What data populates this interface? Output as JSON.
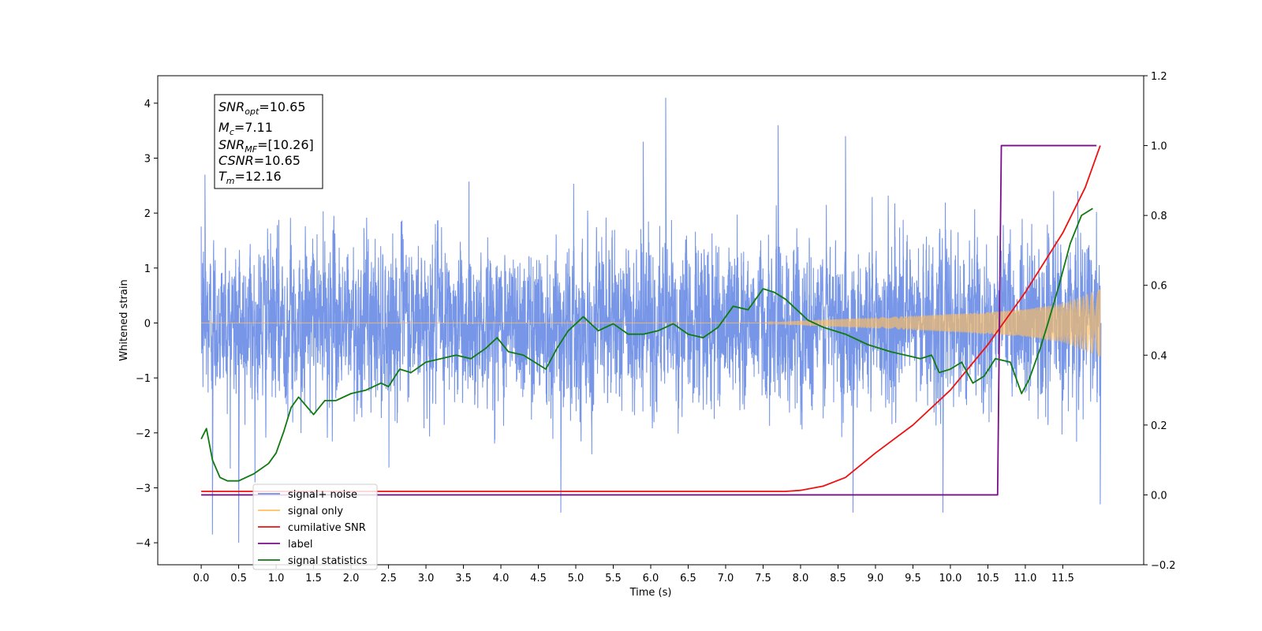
{
  "chart_data": {
    "type": "line",
    "xlabel": "Time (s)",
    "ylabel": "Whitened strain",
    "xlim": [
      -0.58,
      12.58
    ],
    "ylim": [
      -4.4,
      4.5
    ],
    "y2lim": [
      -0.2,
      1.2
    ],
    "x_ticks": [
      "0.0",
      "0.5",
      "1.0",
      "1.5",
      "2.0",
      "2.5",
      "3.0",
      "3.5",
      "4.0",
      "4.5",
      "5.0",
      "5.5",
      "6.0",
      "6.5",
      "7.0",
      "7.5",
      "8.0",
      "8.5",
      "9.0",
      "9.5",
      "10.0",
      "10.5",
      "11.0",
      "11.5"
    ],
    "y_ticks": [
      "4",
      "3",
      "2",
      "1",
      "0",
      "−1",
      "−2",
      "−3",
      "−4"
    ],
    "y2_ticks": [
      "1.2",
      "1.0",
      "0.8",
      "0.6",
      "0.4",
      "0.2",
      "0.0",
      "−0.2"
    ],
    "annotation": {
      "lines": [
        {
          "base": "SNR",
          "sub": "opt",
          "value": "=10.65"
        },
        {
          "base": "M",
          "sub": "c",
          "value": "=7.11"
        },
        {
          "base": "SNR",
          "sub": "MF",
          "value": "=[10.26]"
        },
        {
          "base": "CSNR",
          "sub": "",
          "value": "=10.65"
        },
        {
          "base": "T",
          "sub": "m",
          "value": "=12.16"
        }
      ]
    },
    "legend": {
      "placement": "lower-left",
      "entries": [
        {
          "label": "signal+ noise",
          "color": "#7090e6"
        },
        {
          "label": "signal only",
          "color": "#ffbf60"
        },
        {
          "label": "cumilative SNR",
          "color": "#ee1111"
        },
        {
          "label": "label",
          "color": "#7a0f8a"
        },
        {
          "label": "signal statistics",
          "color": "#107a10"
        }
      ]
    },
    "series": [
      {
        "name": "signal+ noise",
        "axis": "left",
        "description": "whitened noise plus signal, approx. zero mean, unit variance",
        "x_range": [
          0,
          12
        ],
        "envelope_upper_approx": [
          2.5,
          2.6,
          2.5,
          2.4,
          2.5,
          2.6,
          2.5,
          2.5,
          2.4,
          2.6,
          2.5,
          2.5,
          2.4
        ],
        "notable_peaks": [
          [
            0.05,
            2.7
          ],
          [
            6.2,
            4.1
          ],
          [
            7.7,
            3.6
          ],
          [
            5.9,
            3.3
          ],
          [
            8.6,
            3.4
          ],
          [
            11.7,
            2.4
          ]
        ],
        "notable_troughs": [
          [
            0.5,
            -4.0
          ],
          [
            0.15,
            -3.85
          ],
          [
            4.8,
            -3.45
          ],
          [
            8.7,
            -3.45
          ],
          [
            9.9,
            -3.45
          ],
          [
            12.0,
            -3.3
          ]
        ]
      },
      {
        "name": "signal only",
        "axis": "left",
        "x": [
          0.0,
          7.5,
          8.0,
          8.5,
          9.0,
          9.5,
          10.0,
          10.5,
          11.0,
          11.5,
          12.0
        ],
        "amplitude": [
          0.0,
          0.0,
          0.04,
          0.07,
          0.1,
          0.13,
          0.16,
          0.2,
          0.25,
          0.35,
          0.62
        ]
      },
      {
        "name": "cumilative SNR",
        "axis": "right",
        "x": [
          0.0,
          7.5,
          7.8,
          8.0,
          8.3,
          8.6,
          9.0,
          9.5,
          10.0,
          10.5,
          11.0,
          11.5,
          11.8,
          12.0
        ],
        "values": [
          0.01,
          0.01,
          0.01,
          0.013,
          0.025,
          0.05,
          0.12,
          0.2,
          0.3,
          0.43,
          0.58,
          0.75,
          0.88,
          1.0
        ]
      },
      {
        "name": "label",
        "axis": "right",
        "x": [
          0.0,
          10.63,
          10.68,
          11.95
        ],
        "values": [
          0.0,
          0.0,
          1.0,
          1.0
        ]
      },
      {
        "name": "signal statistics",
        "axis": "right",
        "x": [
          0.0,
          0.07,
          0.15,
          0.25,
          0.35,
          0.5,
          0.7,
          0.9,
          1.0,
          1.1,
          1.2,
          1.3,
          1.5,
          1.65,
          1.8,
          2.0,
          2.2,
          2.4,
          2.5,
          2.65,
          2.8,
          3.0,
          3.2,
          3.4,
          3.6,
          3.8,
          3.95,
          4.1,
          4.3,
          4.6,
          4.75,
          4.9,
          5.1,
          5.3,
          5.5,
          5.7,
          5.9,
          6.1,
          6.3,
          6.5,
          6.7,
          6.9,
          7.1,
          7.3,
          7.5,
          7.65,
          7.8,
          7.95,
          8.1,
          8.3,
          8.6,
          8.9,
          9.2,
          9.4,
          9.6,
          9.75,
          9.85,
          10.0,
          10.15,
          10.3,
          10.45,
          10.6,
          10.8,
          10.95,
          11.05,
          11.2,
          11.3,
          11.45,
          11.6,
          11.75,
          11.9
        ],
        "values": [
          0.16,
          0.19,
          0.1,
          0.05,
          0.04,
          0.04,
          0.06,
          0.09,
          0.12,
          0.18,
          0.25,
          0.28,
          0.23,
          0.27,
          0.27,
          0.29,
          0.3,
          0.32,
          0.31,
          0.36,
          0.35,
          0.38,
          0.39,
          0.4,
          0.39,
          0.42,
          0.45,
          0.41,
          0.4,
          0.36,
          0.42,
          0.47,
          0.51,
          0.47,
          0.49,
          0.46,
          0.46,
          0.47,
          0.49,
          0.46,
          0.45,
          0.48,
          0.54,
          0.53,
          0.59,
          0.58,
          0.56,
          0.53,
          0.5,
          0.48,
          0.46,
          0.43,
          0.41,
          0.4,
          0.39,
          0.4,
          0.35,
          0.36,
          0.38,
          0.32,
          0.34,
          0.39,
          0.38,
          0.29,
          0.33,
          0.42,
          0.49,
          0.6,
          0.72,
          0.8,
          0.82
        ]
      }
    ]
  }
}
